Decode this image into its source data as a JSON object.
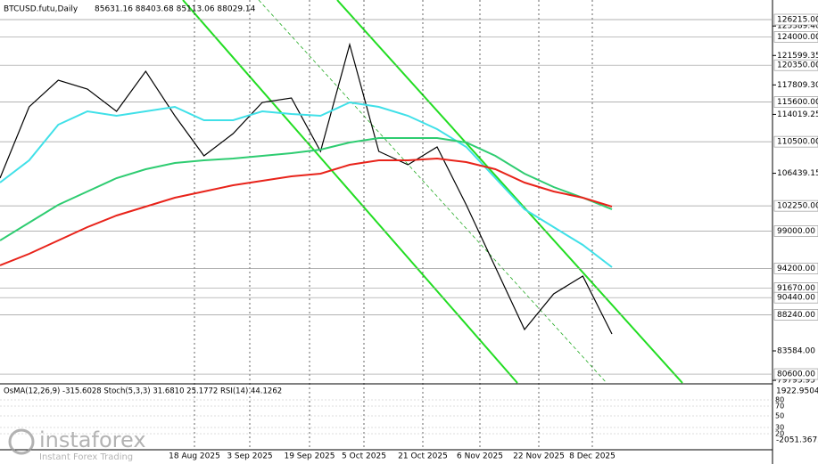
{
  "chart_data": {
    "type": "line",
    "title": "BTCUSD.futu,Daily",
    "ohlc": "85631.16 88403.68 85113.06 88029.14",
    "date_labels": [
      "18 Aug 2025",
      "3 Sep 2025",
      "19 Sep 2025",
      "5 Oct 2025",
      "21 Oct 2025",
      "6 Nov 2025",
      "22 Nov 2025",
      "8 Dec 2025"
    ],
    "ylim": [
      79459,
      128736
    ],
    "yticks": [
      {
        "value": 125389.4,
        "label": "125389.40"
      },
      {
        "value": 121599.35,
        "label": "121599.35"
      },
      {
        "value": 117809.3,
        "label": "117809.30"
      },
      {
        "value": 114019.25,
        "label": "114019.25"
      },
      {
        "value": 106439.15,
        "label": "106439.15"
      },
      {
        "value": 83584,
        "label": "83584.00"
      },
      {
        "value": 79793.95,
        "label": "79793.95"
      }
    ],
    "levels": [
      {
        "value": 126215,
        "label": "126215.00"
      },
      {
        "value": 124000,
        "label": "124000.00"
      },
      {
        "value": 120350,
        "label": "120350.00"
      },
      {
        "value": 115600,
        "label": "115600.00"
      },
      {
        "value": 110500,
        "label": "110500.00"
      },
      {
        "value": 102250,
        "label": "102250.00"
      },
      {
        "value": 99000,
        "label": "99000.00"
      },
      {
        "value": 94200,
        "label": "94200.00"
      },
      {
        "value": 91670,
        "label": "91670.00"
      },
      {
        "value": 90440,
        "label": "90440.00"
      },
      {
        "value": 88240,
        "label": "88240.00"
      },
      {
        "value": 80600,
        "label": "80600.00"
      }
    ],
    "series": [
      {
        "name": "Price",
        "color": "#000000",
        "values": [
          105816,
          114985,
          118422,
          117276,
          114411,
          119568,
          113838,
          108681,
          111546,
          115557,
          116130,
          109254,
          123006,
          109254,
          107535,
          109827,
          102378,
          94356,
          86335,
          90919,
          93211,
          85762
        ]
      },
      {
        "name": "MA50",
        "color": "#40e0e8",
        "values": [
          105243,
          108108,
          112692,
          114411,
          113838,
          114411,
          114985,
          113265,
          113265,
          114411,
          114068,
          113838,
          115557,
          114985,
          113838,
          112119,
          109827,
          105816,
          101805,
          99513,
          97221,
          94356
        ]
      },
      {
        "name": "MA100",
        "color": "#2ecc71",
        "values": [
          97794,
          100086,
          102378,
          104097,
          105816,
          106962,
          107765,
          108108,
          108337,
          108681,
          109024,
          109483,
          110400,
          110973,
          110973,
          110973,
          110400,
          108681,
          106389,
          104670,
          103295,
          101805
        ]
      },
      {
        "name": "MA200",
        "color": "#e8231a",
        "values": [
          94585,
          96075,
          97794,
          99513,
          101003,
          102149,
          103295,
          104097,
          104900,
          105473,
          106046,
          106389,
          107535,
          108108,
          108108,
          108337,
          107879,
          106962,
          105243,
          104097,
          103295,
          102149
        ]
      }
    ],
    "oscillator": {
      "label": "OsMA(12,26,9) -315.6028   Stoch(5,3,3) 31.6810 25.1772   RSI(14) 44.1262",
      "max": "1922.9504",
      "min": "-2051.3672",
      "levels": [
        "80",
        "70",
        "50",
        "30",
        "20"
      ]
    },
    "watermark": {
      "brand": "instaforex",
      "slogan": "Instant Forex Trading"
    }
  }
}
